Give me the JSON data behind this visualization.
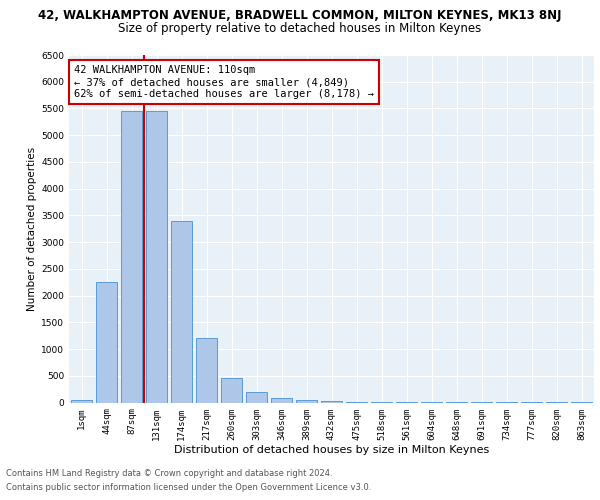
{
  "title_line1": "42, WALKHAMPTON AVENUE, BRADWELL COMMON, MILTON KEYNES, MK13 8NJ",
  "title_line2": "Size of property relative to detached houses in Milton Keynes",
  "xlabel": "Distribution of detached houses by size in Milton Keynes",
  "ylabel": "Number of detached properties",
  "footnote1": "Contains HM Land Registry data © Crown copyright and database right 2024.",
  "footnote2": "Contains public sector information licensed under the Open Government Licence v3.0.",
  "bar_labels": [
    "1sqm",
    "44sqm",
    "87sqm",
    "131sqm",
    "174sqm",
    "217sqm",
    "260sqm",
    "303sqm",
    "346sqm",
    "389sqm",
    "432sqm",
    "475sqm",
    "518sqm",
    "561sqm",
    "604sqm",
    "648sqm",
    "691sqm",
    "734sqm",
    "777sqm",
    "820sqm",
    "863sqm"
  ],
  "bar_values": [
    50,
    2250,
    5450,
    5450,
    3400,
    1200,
    460,
    200,
    90,
    50,
    20,
    10,
    5,
    5,
    5,
    5,
    5,
    5,
    5,
    5,
    5
  ],
  "bar_color": "#aec6e8",
  "bar_edge_color": "#5b9bd5",
  "vline_x": 2.5,
  "vline_color": "#cc0000",
  "annotation_text": "42 WALKHAMPTON AVENUE: 110sqm\n← 37% of detached houses are smaller (4,849)\n62% of semi-detached houses are larger (8,178) →",
  "annotation_box_color": "#cc0000",
  "ylim": [
    0,
    6500
  ],
  "yticks": [
    0,
    500,
    1000,
    1500,
    2000,
    2500,
    3000,
    3500,
    4000,
    4500,
    5000,
    5500,
    6000,
    6500
  ],
  "bg_color": "#e8f0f8",
  "grid_color": "#ffffff",
  "title1_fontsize": 8.5,
  "title2_fontsize": 8.5,
  "annotation_fontsize": 7.5,
  "ylabel_fontsize": 7.5,
  "xlabel_fontsize": 8,
  "tick_fontsize": 6.5,
  "footnote_fontsize": 6
}
